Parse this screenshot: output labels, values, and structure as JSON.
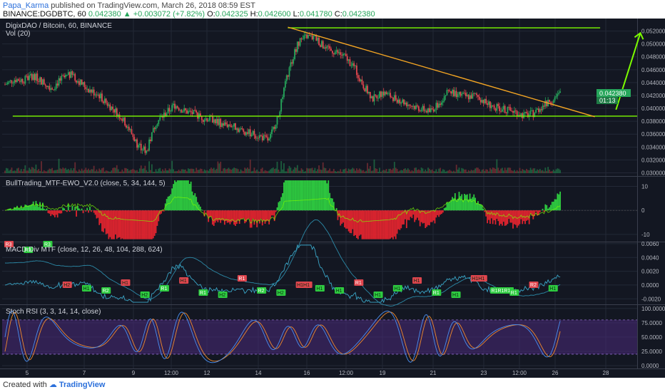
{
  "header": {
    "author": "Papa_Karma",
    "published": "published on TradingView.com, March 26, 2018 08:59 EST",
    "symbol_line": "BINANCE:DGDBTC, 60",
    "last": "0.042380",
    "change": "+0.003072 (+7.82%)",
    "o_label": "O:",
    "o": "0.042325",
    "h_label": "H:",
    "h": "0.042600",
    "l_label": "L:",
    "l": "0.041780",
    "c_label": "C:",
    "c": "0.042380"
  },
  "footer": {
    "created_with": "Created with",
    "brand": "TradingView"
  },
  "colors": {
    "bg": "#131722",
    "grid": "#232836",
    "bull": "#26a65b",
    "bear": "#e0464e",
    "trend_green": "#7cfc00",
    "trend_orange": "#f5a623",
    "macd": "#3aa6c7",
    "stoch_k": "#4a8ff0",
    "stoch_d": "#f08a2c",
    "stoch_band": "#4b2a7a",
    "price_tag": "#26a65b"
  },
  "chart_data": [
    {
      "type": "line",
      "subtype": "candlestick",
      "title": "DigixDAO / Bitcoin, 60, BINANCE",
      "volume_label": "Vol (20)",
      "ylim": [
        0.0295,
        0.0535
      ],
      "yticks": [
        "0.052000",
        "0.050000",
        "0.048000",
        "0.046000",
        "0.044000",
        "0.042000",
        "0.040000",
        "0.038000",
        "0.036000",
        "0.034000",
        "0.032000",
        "0.030000"
      ],
      "last_price": "0.042380",
      "countdown": "01:13",
      "xticks": [
        "5",
        "7",
        "9",
        "12:00",
        "12",
        "14",
        "16",
        "12:00",
        "19",
        "21",
        "23",
        "12:00",
        "26",
        "28"
      ],
      "price_path": [
        [
          0,
          0.0437
        ],
        [
          1,
          0.0445
        ],
        [
          2,
          0.0444
        ],
        [
          3,
          0.0451
        ],
        [
          4,
          0.0441
        ],
        [
          5,
          0.0432
        ],
        [
          6,
          0.0446
        ],
        [
          7,
          0.0452
        ],
        [
          8,
          0.044
        ],
        [
          9,
          0.0428
        ],
        [
          10,
          0.042
        ],
        [
          11,
          0.0405
        ],
        [
          12,
          0.0392
        ],
        [
          13,
          0.0372
        ],
        [
          14,
          0.0345
        ],
        [
          15,
          0.0333
        ],
        [
          16,
          0.0378
        ],
        [
          17,
          0.0392
        ],
        [
          18,
          0.0405
        ],
        [
          19,
          0.0396
        ],
        [
          20,
          0.0392
        ],
        [
          21,
          0.0385
        ],
        [
          22,
          0.0383
        ],
        [
          23,
          0.0376
        ],
        [
          24,
          0.0374
        ],
        [
          25,
          0.0366
        ],
        [
          26,
          0.0362
        ],
        [
          27,
          0.0357
        ],
        [
          28,
          0.035
        ],
        [
          29,
          0.0392
        ],
        [
          30,
          0.0455
        ],
        [
          31,
          0.05
        ],
        [
          32,
          0.0512
        ],
        [
          33,
          0.0508
        ],
        [
          34,
          0.0492
        ],
        [
          35,
          0.0488
        ],
        [
          36,
          0.048
        ],
        [
          37,
          0.0465
        ],
        [
          38,
          0.0435
        ],
        [
          39,
          0.0415
        ],
        [
          40,
          0.0425
        ],
        [
          41,
          0.0418
        ],
        [
          42,
          0.0412
        ],
        [
          43,
          0.0405
        ],
        [
          44,
          0.04
        ],
        [
          45,
          0.0395
        ],
        [
          46,
          0.0407
        ],
        [
          47,
          0.0428
        ],
        [
          48,
          0.0422
        ],
        [
          49,
          0.0418
        ],
        [
          50,
          0.042
        ],
        [
          51,
          0.0408
        ],
        [
          52,
          0.0402
        ],
        [
          53,
          0.0398
        ],
        [
          54,
          0.0395
        ],
        [
          55,
          0.0389
        ],
        [
          56,
          0.0392
        ],
        [
          57,
          0.0404
        ],
        [
          58,
          0.0413
        ],
        [
          59,
          0.0424
        ]
      ],
      "annotations": {
        "resistance": {
          "x": [
            26.5,
            56
          ],
          "y": 0.0525
        },
        "support": {
          "x": [
            0.5,
            59.5
          ],
          "y": 0.0388
        },
        "downtrend": {
          "x": [
            26.5,
            55.5
          ],
          "y": [
            0.0526,
            0.0387
          ]
        },
        "projection_arrow": {
          "from": [
            57.5,
            0.0398
          ],
          "to": [
            59.8,
            0.0517
          ]
        }
      }
    },
    {
      "type": "bar",
      "title": "BullTrading_MTF-EWO_V2.0 (close, 5, 34, 144, 5)",
      "ylim": [
        -13,
        14
      ],
      "yticks": [
        "10",
        "0",
        "-10"
      ]
    },
    {
      "type": "line",
      "title": "MACD Div MTF (close, 12, 26, 48, 104, 288, 624)",
      "ylim": [
        -0.0028,
        0.0062
      ],
      "yticks": [
        "0.0060",
        "0.0040",
        "0.0020",
        "0.0000",
        "-0.0020"
      ],
      "signals": [
        "R3",
        "R3",
        "R3",
        "H2",
        "H1",
        "R2",
        "H1",
        "H2",
        "R1",
        "H1",
        "R1",
        "H2",
        "R1",
        "R2",
        "H2",
        "H1H1",
        "H1",
        "H1",
        "R1",
        "H1",
        "H1",
        "H1",
        "R1",
        "H1",
        "H1H1",
        "R1R1R1",
        "R1",
        "R2",
        "H1"
      ]
    },
    {
      "type": "line",
      "title": "Stoch RSI (3, 3, 14, 14, close)",
      "ylim": [
        -5,
        106
      ],
      "yticks": [
        "100.0000",
        "75.0000",
        "50.0000",
        "25.0000",
        "0.0000"
      ],
      "bands": [
        20,
        80
      ]
    }
  ]
}
